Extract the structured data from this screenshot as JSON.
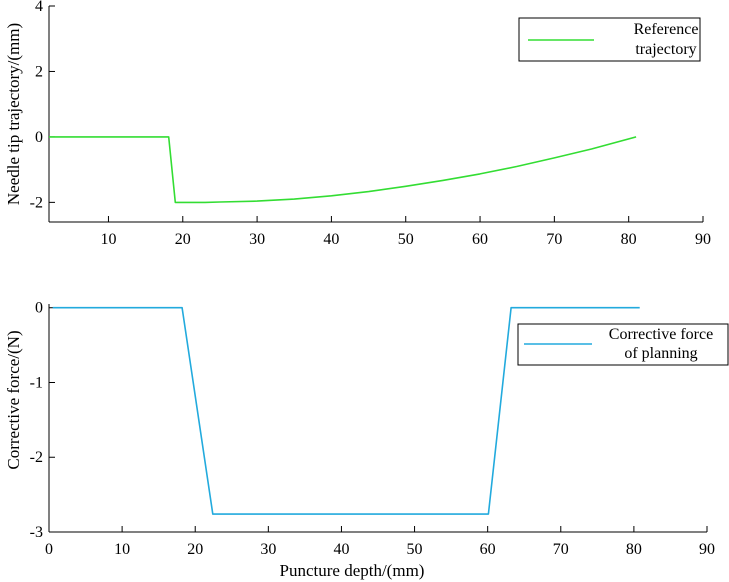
{
  "chart_data": [
    {
      "type": "line",
      "xlabel": "",
      "ylabel": "Needle tip trajectory/(mm)",
      "xlim": [
        2,
        90
      ],
      "ylim": [
        -2.6,
        4
      ],
      "xticks": [
        10,
        20,
        30,
        40,
        50,
        60,
        70,
        80,
        90
      ],
      "yticks": [
        -2,
        0,
        2,
        4
      ],
      "legend": {
        "placement": "top-right",
        "entries": [
          "Reference",
          "trajectory"
        ]
      },
      "series": [
        {
          "name": "Reference trajectory",
          "color": "#33dd33",
          "x": [
            2,
            18.1,
            19,
            21,
            23,
            25,
            30,
            35,
            40,
            45,
            50,
            55,
            60,
            65,
            70,
            75,
            81
          ],
          "y": [
            0,
            0,
            -2,
            -2,
            -2,
            -1.99,
            -1.96,
            -1.9,
            -1.8,
            -1.67,
            -1.51,
            -1.33,
            -1.13,
            -0.9,
            -0.64,
            -0.37,
            0
          ]
        }
      ]
    },
    {
      "type": "line",
      "xlabel": "Puncture depth/(mm)",
      "ylabel": "Corrective force/(N)",
      "xlim": [
        0,
        90
      ],
      "ylim": [
        -3,
        0.05
      ],
      "xticks": [
        0,
        10,
        20,
        30,
        40,
        50,
        60,
        70,
        80,
        90
      ],
      "yticks": [
        -3,
        -2,
        -1,
        0
      ],
      "legend": {
        "placement": "top-right",
        "entries": [
          "Corrective force",
          "of planning"
        ]
      },
      "series": [
        {
          "name": "Corrective force of planning",
          "color": "#22aadd",
          "x": [
            0.5,
            18.2,
            22.4,
            60.1,
            63.2,
            80.8
          ],
          "y": [
            0,
            0,
            -2.76,
            -2.76,
            0,
            0
          ]
        }
      ]
    }
  ]
}
